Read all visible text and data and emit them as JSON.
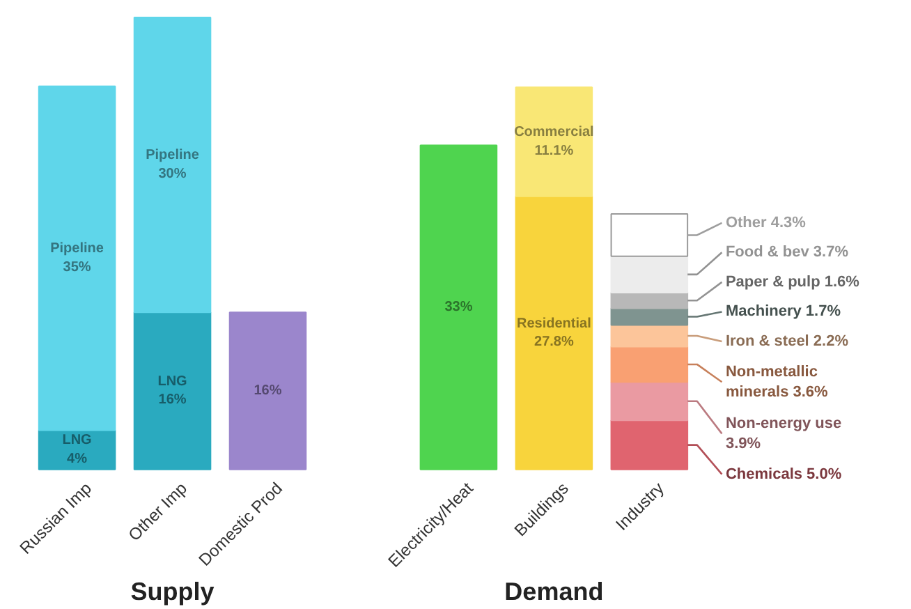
{
  "chart_data": {
    "type": "bar",
    "stacked": true,
    "data_labels": true,
    "grid": false,
    "categories": [
      "Russian Imp",
      "Other Imp",
      "Domestic Prod",
      null,
      "Electricity/Heat",
      "Buildings",
      "Industry"
    ],
    "annotations": [
      "Supply",
      "Demand"
    ],
    "series": [
      {
        "name": "LNG",
        "color": "#2aaabf",
        "values": [
          4,
          16,
          null,
          null,
          null,
          null,
          null
        ],
        "value_labels": [
          "4%",
          "16%",
          null,
          null,
          null,
          null,
          null
        ]
      },
      {
        "name": "Pipeline",
        "color": "#5fd6ea",
        "values": [
          35,
          30,
          null,
          null,
          null,
          null,
          null
        ],
        "value_labels": [
          "35%",
          "30%",
          null,
          null,
          null,
          null,
          null
        ]
      },
      {
        "color": "#9b86cc",
        "values": [
          null,
          null,
          16,
          null,
          null,
          null,
          null
        ],
        "value_labels": [
          null,
          null,
          "16%",
          null,
          null,
          null,
          null
        ]
      },
      {
        "color": "#4fd44f",
        "values": [
          null,
          null,
          null,
          null,
          33,
          null,
          null
        ],
        "value_labels": [
          null,
          null,
          null,
          null,
          "33%",
          null,
          null
        ]
      },
      {
        "name": "Residential",
        "color": "#f8d43c",
        "values": [
          null,
          null,
          null,
          null,
          null,
          27.8,
          null
        ],
        "value_labels": [
          null,
          null,
          null,
          null,
          null,
          "27.8%",
          null
        ]
      },
      {
        "name": "Commercial",
        "color": "#f9e775",
        "values": [
          null,
          null,
          null,
          null,
          null,
          11.1,
          null
        ],
        "value_labels": [
          null,
          null,
          null,
          null,
          null,
          "11.1%",
          null
        ]
      },
      {
        "name": "Chemicals",
        "color": "#e0646f",
        "values": [
          null,
          null,
          null,
          null,
          null,
          null,
          5.0
        ],
        "value_labels": [
          null,
          null,
          null,
          null,
          null,
          null,
          "5.0%"
        ]
      },
      {
        "name": "Non-energy use",
        "color": "#ea9aa2",
        "values": [
          null,
          null,
          null,
          null,
          null,
          null,
          3.9
        ],
        "value_labels": [
          null,
          null,
          null,
          null,
          null,
          null,
          "3.9%"
        ]
      },
      {
        "name": "Non-metallic minerals",
        "color": "#f9a072",
        "values": [
          null,
          null,
          null,
          null,
          null,
          null,
          3.6
        ],
        "value_labels": [
          null,
          null,
          null,
          null,
          null,
          null,
          "3.6%"
        ]
      },
      {
        "name": "Iron & steel",
        "color": "#fcc59a",
        "values": [
          null,
          null,
          null,
          null,
          null,
          null,
          2.2
        ],
        "value_labels": [
          null,
          null,
          null,
          null,
          null,
          null,
          "2.2%"
        ]
      },
      {
        "name": "Machinery",
        "color": "#7f9490",
        "values": [
          null,
          null,
          null,
          null,
          null,
          null,
          1.7
        ],
        "value_labels": [
          null,
          null,
          null,
          null,
          null,
          null,
          "1.7%"
        ]
      },
      {
        "name": "Paper & pulp",
        "color": "#b8b8b8",
        "values": [
          null,
          null,
          null,
          null,
          null,
          null,
          1.6
        ],
        "value_labels": [
          null,
          null,
          null,
          null,
          null,
          null,
          "1.6%"
        ]
      },
      {
        "name": "Food & bev",
        "color": "#ececec",
        "values": [
          null,
          null,
          null,
          null,
          null,
          null,
          3.7
        ],
        "value_labels": [
          null,
          null,
          null,
          null,
          null,
          null,
          "3.7%"
        ]
      },
      {
        "name": "Other",
        "color": "#ffffff",
        "values": [
          null,
          null,
          null,
          null,
          null,
          null,
          4.3
        ],
        "value_labels": [
          null,
          null,
          null,
          null,
          null,
          null,
          "4.3%"
        ]
      }
    ]
  }
}
